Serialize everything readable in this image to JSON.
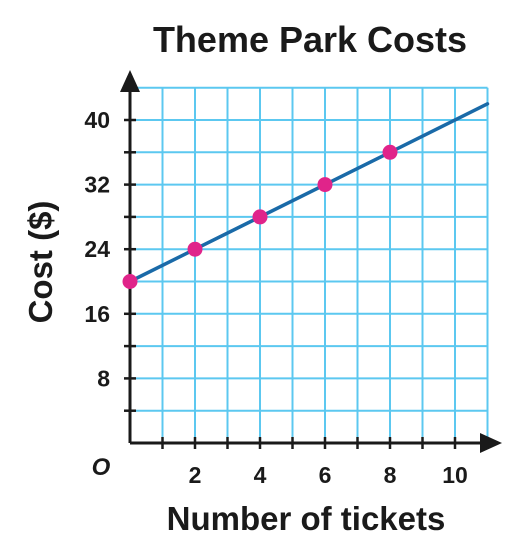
{
  "chart_data": {
    "type": "scatter",
    "title": "Theme Park Costs",
    "xlabel": "Number of tickets",
    "ylabel": "Cost ($)",
    "origin_label": "O",
    "xlim": [
      0,
      11
    ],
    "ylim": [
      0,
      44
    ],
    "grid": true,
    "x_grid_step": 1,
    "y_grid_step": 4,
    "x_ticks": [
      2,
      4,
      6,
      8,
      10
    ],
    "y_ticks": [
      8,
      16,
      24,
      32,
      40
    ],
    "x_tick_labels": [
      "2",
      "4",
      "6",
      "8",
      "10"
    ],
    "y_tick_labels": [
      "8",
      "16",
      "24",
      "32",
      "40"
    ],
    "points": [
      {
        "x": 0,
        "y": 20
      },
      {
        "x": 2,
        "y": 24
      },
      {
        "x": 4,
        "y": 28
      },
      {
        "x": 6,
        "y": 32
      },
      {
        "x": 8,
        "y": 36
      }
    ],
    "line": {
      "slope": 2,
      "intercept": 20,
      "x_start": 0,
      "x_end": 11
    },
    "colors": {
      "grid": "#5cc8f0",
      "axis": "#1a1a1a",
      "line": "#1a6aa8",
      "point": "#e0248a"
    }
  }
}
